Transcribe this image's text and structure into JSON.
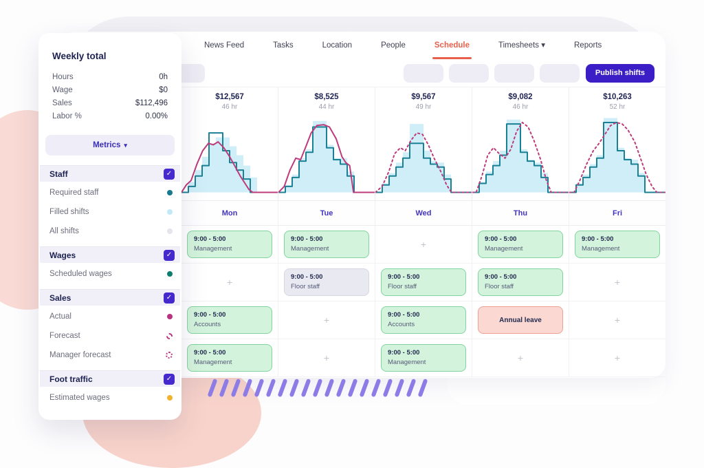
{
  "app": {
    "publish_label": "Publish shifts"
  },
  "nav": {
    "items": [
      {
        "label": "News Feed",
        "active": false,
        "caret": false
      },
      {
        "label": "Tasks",
        "active": false,
        "caret": false
      },
      {
        "label": "Location",
        "active": false,
        "caret": false
      },
      {
        "label": "People",
        "active": false,
        "caret": false
      },
      {
        "label": "Schedule",
        "active": true,
        "caret": false
      },
      {
        "label": "Timesheets",
        "active": false,
        "caret": true
      },
      {
        "label": "Reports",
        "active": false,
        "caret": false
      }
    ]
  },
  "sidebar": {
    "title": "Weekly total",
    "stats": [
      {
        "label": "Hours",
        "value": "0h"
      },
      {
        "label": "Wage",
        "value": "$0"
      },
      {
        "label": "Sales",
        "value": "$112,496"
      },
      {
        "label": "Labor %",
        "value": "0.00%"
      }
    ],
    "metrics_button": "Metrics",
    "sections": [
      {
        "label": "Staff",
        "checked": true,
        "items": [
          {
            "label": "Required staff",
            "color": "#17798c",
            "style": "solid"
          },
          {
            "label": "Filled shifts",
            "color": "#c2e9f6",
            "style": "solid"
          },
          {
            "label": "All shifts",
            "color": "#e4e4ea",
            "style": "solid"
          }
        ]
      },
      {
        "label": "Wages",
        "checked": true,
        "items": [
          {
            "label": "Scheduled wages",
            "color": "#0c7e6d",
            "style": "solid"
          }
        ]
      },
      {
        "label": "Sales",
        "checked": true,
        "items": [
          {
            "label": "Actual",
            "color": "#b93380",
            "style": "solid"
          },
          {
            "label": "Forecast",
            "color": "#b93380",
            "style": "dashed"
          },
          {
            "label": "Manager forecast",
            "color": "#b93380",
            "style": "dotted"
          }
        ]
      },
      {
        "label": "Foot traffic",
        "checked": true,
        "items": [
          {
            "label": "Estimated wages",
            "color": "#f2b22e",
            "style": "solid"
          }
        ]
      }
    ]
  },
  "chart_data": {
    "type": "composite-day-charts",
    "days": [
      "Mon",
      "Tue",
      "Wed",
      "Thu",
      "Fri"
    ],
    "sales_totals": [
      "$12,567",
      "$8,525",
      "$9,567",
      "$9,082",
      "$10,263"
    ],
    "hours_totals": [
      "46 hr",
      "44 hr",
      "49 hr",
      "46 hr",
      "52 hr"
    ],
    "legend": [
      "Required staff = teal step line",
      "Filled shifts = light blue area",
      "Actual sales = solid magenta line (Mon-Tue)",
      "Forecast sales = dashed magenta line (Wed-Fri)"
    ],
    "colors": {
      "staff_line": "#1a8094",
      "filled_area": "#cfeef8",
      "sales_line": "#bd3b7b"
    },
    "per_day": [
      {
        "day": "Mon",
        "sales_dashed": false,
        "area": [
          0,
          14,
          30,
          48,
          66,
          74,
          74,
          62,
          50,
          36,
          20,
          0,
          0,
          0
        ],
        "staff": [
          0,
          8,
          22,
          36,
          80,
          80,
          56,
          40,
          30,
          18,
          0,
          0,
          0,
          0
        ],
        "sales": [
          [
            0,
            0
          ],
          [
            0.05,
            10
          ],
          [
            0.1,
            16
          ],
          [
            0.16,
            38
          ],
          [
            0.22,
            56
          ],
          [
            0.28,
            66
          ],
          [
            0.33,
            64
          ],
          [
            0.38,
            68
          ],
          [
            0.44,
            60
          ],
          [
            0.5,
            48
          ],
          [
            0.56,
            34
          ],
          [
            0.61,
            22
          ],
          [
            0.66,
            12
          ],
          [
            0.7,
            4
          ],
          [
            0.74,
            0
          ],
          [
            1,
            0
          ]
        ]
      },
      {
        "day": "Tue",
        "sales_dashed": false,
        "area": [
          0,
          10,
          24,
          46,
          58,
          96,
          96,
          64,
          46,
          46,
          28,
          0,
          0,
          0
        ],
        "staff": [
          0,
          8,
          20,
          42,
          54,
          88,
          88,
          60,
          44,
          38,
          22,
          0,
          0,
          0
        ],
        "sales": [
          [
            0,
            0
          ],
          [
            0.06,
            8
          ],
          [
            0.12,
            30
          ],
          [
            0.18,
            46
          ],
          [
            0.23,
            44
          ],
          [
            0.28,
            60
          ],
          [
            0.34,
            80
          ],
          [
            0.4,
            90
          ],
          [
            0.47,
            91
          ],
          [
            0.53,
            88
          ],
          [
            0.6,
            72
          ],
          [
            0.66,
            48
          ],
          [
            0.7,
            40
          ],
          [
            0.74,
            36
          ],
          [
            0.78,
            0
          ],
          [
            1,
            0
          ]
        ]
      },
      {
        "day": "Wed",
        "sales_dashed": true,
        "area": [
          0,
          12,
          26,
          40,
          54,
          92,
          92,
          56,
          42,
          40,
          24,
          0,
          0,
          0
        ],
        "staff": [
          0,
          10,
          22,
          34,
          46,
          66,
          66,
          46,
          38,
          34,
          18,
          0,
          0,
          0
        ],
        "sales": [
          [
            0,
            0
          ],
          [
            0.07,
            8
          ],
          [
            0.14,
            28
          ],
          [
            0.2,
            52
          ],
          [
            0.26,
            60
          ],
          [
            0.31,
            56
          ],
          [
            0.37,
            70
          ],
          [
            0.43,
            80
          ],
          [
            0.49,
            78
          ],
          [
            0.55,
            64
          ],
          [
            0.61,
            46
          ],
          [
            0.68,
            28
          ],
          [
            0.74,
            10
          ],
          [
            0.79,
            0
          ],
          [
            1,
            0
          ]
        ]
      },
      {
        "day": "Thu",
        "sales_dashed": true,
        "area": [
          0,
          14,
          28,
          42,
          56,
          98,
          98,
          58,
          44,
          40,
          26,
          0,
          0,
          0
        ],
        "staff": [
          0,
          12,
          24,
          36,
          50,
          92,
          92,
          54,
          42,
          36,
          20,
          0,
          0,
          0
        ],
        "sales": [
          [
            0,
            0
          ],
          [
            0.04,
            0
          ],
          [
            0.1,
            22
          ],
          [
            0.16,
            50
          ],
          [
            0.22,
            60
          ],
          [
            0.28,
            52
          ],
          [
            0.34,
            46
          ],
          [
            0.4,
            58
          ],
          [
            0.46,
            82
          ],
          [
            0.52,
            94
          ],
          [
            0.58,
            88
          ],
          [
            0.64,
            70
          ],
          [
            0.71,
            44
          ],
          [
            0.77,
            16
          ],
          [
            0.82,
            0
          ],
          [
            1,
            0
          ]
        ]
      },
      {
        "day": "Fri",
        "sales_dashed": true,
        "area": [
          0,
          12,
          24,
          38,
          50,
          100,
          100,
          60,
          46,
          44,
          26,
          0,
          0,
          0
        ],
        "staff": [
          0,
          10,
          20,
          34,
          46,
          94,
          94,
          56,
          44,
          38,
          22,
          0,
          0,
          0
        ],
        "sales": [
          [
            0,
            0
          ],
          [
            0.05,
            0
          ],
          [
            0.11,
            16
          ],
          [
            0.18,
            38
          ],
          [
            0.25,
            56
          ],
          [
            0.31,
            66
          ],
          [
            0.37,
            78
          ],
          [
            0.43,
            90
          ],
          [
            0.49,
            94
          ],
          [
            0.55,
            92
          ],
          [
            0.61,
            84
          ],
          [
            0.68,
            68
          ],
          [
            0.74,
            46
          ],
          [
            0.8,
            24
          ],
          [
            0.86,
            8
          ],
          [
            0.91,
            0
          ],
          [
            1,
            0
          ]
        ]
      }
    ]
  },
  "schedule": {
    "day_headers": [
      "Mon",
      "Tue",
      "Wed",
      "Thu",
      "Fri"
    ],
    "rows": [
      [
        {
          "type": "shift",
          "time": "9:00 - 5:00",
          "role": "Management",
          "variant": "green"
        },
        {
          "type": "shift",
          "time": "9:00 - 5:00",
          "role": "Management",
          "variant": "green"
        },
        {
          "type": "add"
        },
        {
          "type": "shift",
          "time": "9:00 - 5:00",
          "role": "Management",
          "variant": "green"
        },
        {
          "type": "shift",
          "time": "9:00 - 5:00",
          "role": "Management",
          "variant": "green"
        }
      ],
      [
        {
          "type": "add"
        },
        {
          "type": "shift",
          "time": "9:00 - 5:00",
          "role": "Floor staff",
          "variant": "gray"
        },
        {
          "type": "shift",
          "time": "9:00 - 5:00",
          "role": "Floor staff",
          "variant": "green"
        },
        {
          "type": "shift",
          "time": "9:00 - 5:00",
          "role": "Floor staff",
          "variant": "green"
        },
        {
          "type": "add"
        }
      ],
      [
        {
          "type": "shift",
          "time": "9:00 - 5:00",
          "role": "Accounts",
          "variant": "green"
        },
        {
          "type": "add"
        },
        {
          "type": "shift",
          "time": "9:00 - 5:00",
          "role": "Accounts",
          "variant": "green"
        },
        {
          "type": "leave",
          "label": "Annual leave"
        },
        {
          "type": "add"
        }
      ],
      [
        {
          "type": "shift",
          "time": "9:00 - 5:00",
          "role": "Management",
          "variant": "green"
        },
        {
          "type": "add"
        },
        {
          "type": "shift",
          "time": "9:00 - 5:00",
          "role": "Management",
          "variant": "green"
        },
        {
          "type": "add"
        },
        {
          "type": "add"
        }
      ]
    ]
  }
}
